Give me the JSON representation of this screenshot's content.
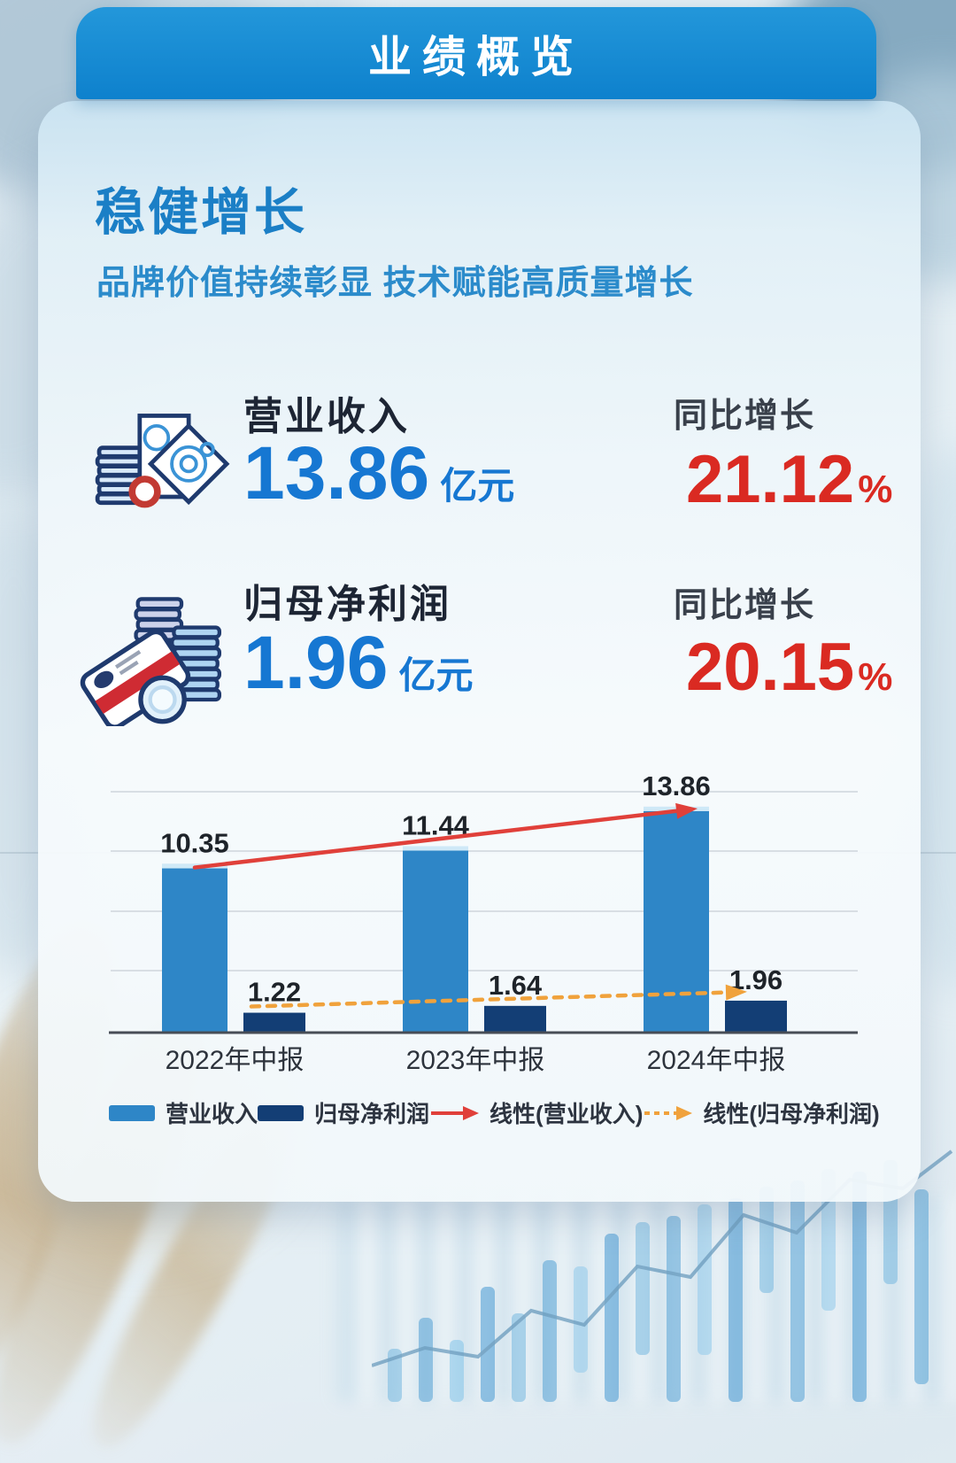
{
  "header": {
    "title": "业绩概览"
  },
  "section": {
    "title": "稳健增长",
    "subtitle": "品牌价值持续彰显  技术赋能高质量增长"
  },
  "metrics": [
    {
      "icon": "banknotes-coins-icon",
      "label": "营业收入",
      "value": "13.86",
      "unit": "亿元",
      "growth_label": "同比增长",
      "growth_value": "21.12",
      "growth_unit": "%"
    },
    {
      "icon": "credit-card-coins-icon",
      "label": "归母净利润",
      "value": "1.96",
      "unit": "亿元",
      "growth_label": "同比增长",
      "growth_value": "20.15",
      "growth_unit": "%"
    }
  ],
  "legend": [
    {
      "label": "营业收入",
      "marker": "light-blue-swatch"
    },
    {
      "label": "归母净利润",
      "marker": "dark-navy-swatch"
    },
    {
      "label": "线性(营业收入)",
      "marker": "solid-red-arrow"
    },
    {
      "label": "线性(归母净利润)",
      "marker": "dashed-orange-arrow"
    }
  ],
  "colors": {
    "banner_blue": "#1287d1",
    "title_blue": "#1b7fc6",
    "number_blue": "#1677d2",
    "growth_red": "#da2a22",
    "bar_light_blue": "#2e86c7",
    "bar_dark_navy": "#133e75",
    "trend_red": "#e0403a",
    "trend_orange": "#f0a23c"
  },
  "chart_data": {
    "type": "bar",
    "title": "",
    "categories": [
      "2022年中报",
      "2023年中报",
      "2024年中报"
    ],
    "series": [
      {
        "name": "营业收入",
        "values": [
          10.35,
          11.44,
          13.86
        ],
        "color": "#2e86c7"
      },
      {
        "name": "归母净利润",
        "values": [
          1.22,
          1.64,
          1.96
        ],
        "color": "#133e75"
      }
    ],
    "trendlines": [
      {
        "name": "线性(营业收入)",
        "style": "solid",
        "color": "#e0403a"
      },
      {
        "name": "线性(归母净利润)",
        "style": "dashed",
        "color": "#f0a23c"
      }
    ],
    "unit": "亿元",
    "ylim": [
      0,
      16
    ],
    "grid": true,
    "value_labels": true,
    "legend_position": "bottom",
    "xlabel": "",
    "ylabel": ""
  }
}
